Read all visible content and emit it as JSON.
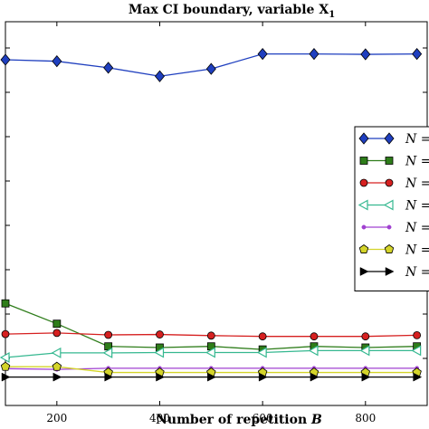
{
  "chart_data": {
    "type": "line",
    "title": "Max CI boundary, variable X",
    "title_subscript": "1",
    "xlabel": "Number of repetition",
    "xlabel_var": "B",
    "ylabel": "",
    "x": [
      100,
      200,
      300,
      400,
      500,
      600,
      700,
      800,
      900
    ],
    "x_ticks": [
      "200",
      "400",
      "600",
      "800"
    ],
    "xlim": [
      100,
      920
    ],
    "ylim": [
      0,
      1
    ],
    "grid": false,
    "legend_position": "right",
    "series": [
      {
        "name": "N =",
        "color": "#1f3fbf",
        "marker": "diamond",
        "values": [
          0.901,
          0.897,
          0.88,
          0.858,
          0.877,
          0.916,
          0.916,
          0.915,
          0.916
        ]
      },
      {
        "name": "N =",
        "color": "#2e7d1a",
        "marker": "square",
        "values": [
          0.266,
          0.213,
          0.154,
          0.151,
          0.154,
          0.146,
          0.154,
          0.151,
          0.154
        ]
      },
      {
        "name": "N =",
        "color": "#d62020",
        "marker": "circle",
        "values": [
          0.186,
          0.189,
          0.184,
          0.185,
          0.182,
          0.18,
          0.18,
          0.18,
          0.183
        ]
      },
      {
        "name": "N =",
        "color": "#35b890",
        "marker": "triangle-left",
        "values": [
          0.125,
          0.137,
          0.137,
          0.138,
          0.138,
          0.138,
          0.143,
          0.143,
          0.143
        ]
      },
      {
        "name": "N =",
        "color": "#a040d0",
        "marker": "dot",
        "values": [
          0.096,
          0.094,
          0.097,
          0.097,
          0.097,
          0.097,
          0.097,
          0.097,
          0.097
        ]
      },
      {
        "name": "N =",
        "color": "#d4d42a",
        "marker": "pentagon",
        "values": [
          0.101,
          0.101,
          0.086,
          0.086,
          0.086,
          0.086,
          0.086,
          0.086,
          0.086
        ]
      },
      {
        "name": "N =",
        "color": "#000000",
        "marker": "triangle-right",
        "values": [
          0.074,
          0.074,
          0.074,
          0.074,
          0.074,
          0.074,
          0.074,
          0.074,
          0.074
        ]
      }
    ]
  }
}
